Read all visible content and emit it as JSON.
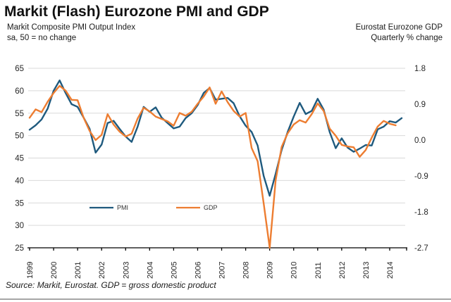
{
  "page": {
    "title": "Markit (Flash) Eurozone PMI and GDP",
    "source_note": "Source: Markit, Eurostat. GDP = gross domestic product"
  },
  "axis_titles": {
    "left_line1": "Markit Composite PMI Output Index",
    "left_line2": "sa, 50 = no change",
    "right_line1": "Eurostat Eurozone GDP",
    "right_line2": "Quarterly % change"
  },
  "colors": {
    "pmi_line": "#1f5a7e",
    "gdp_line": "#ed7d31",
    "gridline": "#d9d9d9",
    "axis": "#000000"
  },
  "chart_data": {
    "type": "line",
    "title": "Markit (Flash) Eurozone PMI and GDP",
    "grid": true,
    "legend_position": "inside-bottom",
    "x_ticks": [
      1999,
      2000,
      2001,
      2002,
      2003,
      2004,
      2005,
      2006,
      2007,
      2008,
      2009,
      2010,
      2011,
      2012,
      2013,
      2014
    ],
    "left_axis": {
      "label": "Markit Composite PMI Output Index, sa, 50 = no change",
      "ylim": [
        25,
        65
      ],
      "ticks": [
        65,
        60,
        55,
        50,
        45,
        40,
        35,
        30,
        25
      ]
    },
    "right_axis": {
      "label": "Eurostat Eurozone GDP, Quarterly % change",
      "ylim": [
        -2.7,
        1.8
      ],
      "tick_labels": [
        "1.8",
        "0.9",
        "0.0",
        "-0.9",
        "-1.8",
        "-2.7"
      ]
    },
    "series": [
      {
        "name": "PMI",
        "axis": "left",
        "color": "#1f5a7e",
        "x_start": 1999.0,
        "x_step": 0.25,
        "values": [
          51.3,
          52.3,
          53.6,
          56.0,
          60.0,
          62.3,
          59.5,
          57.0,
          56.4,
          54.0,
          51.5,
          46.2,
          48.0,
          52.8,
          53.3,
          51.5,
          49.8,
          48.6,
          52.0,
          56.4,
          55.3,
          56.3,
          54.0,
          52.8,
          51.6,
          52.0,
          53.9,
          55.0,
          56.8,
          59.5,
          60.6,
          58.0,
          58.2,
          58.4,
          57.2,
          54.3,
          52.2,
          50.8,
          47.8,
          41.0,
          36.6,
          41.5,
          46.8,
          50.8,
          54.2,
          57.3,
          54.8,
          55.5,
          58.2,
          55.8,
          50.8,
          47.2,
          49.4,
          47.3,
          46.4,
          47.1,
          47.9,
          47.8,
          51.4,
          52.0,
          53.2,
          52.9,
          53.9
        ]
      },
      {
        "name": "GDP",
        "axis": "right",
        "color": "#ed7d31",
        "x_start": 1999.0,
        "x_step": 0.25,
        "values": [
          0.56,
          0.77,
          0.7,
          0.96,
          1.18,
          1.36,
          1.24,
          1.01,
          1.0,
          0.56,
          0.23,
          0.0,
          0.13,
          0.65,
          0.39,
          0.21,
          0.09,
          0.16,
          0.54,
          0.81,
          0.72,
          0.59,
          0.53,
          0.47,
          0.36,
          0.68,
          0.61,
          0.71,
          0.91,
          1.09,
          1.32,
          0.91,
          1.22,
          0.95,
          0.73,
          0.59,
          0.68,
          -0.2,
          -0.53,
          -1.59,
          -2.7,
          -1.0,
          -0.17,
          0.17,
          0.39,
          0.5,
          0.44,
          0.65,
          0.92,
          0.73,
          0.29,
          0.11,
          -0.12,
          -0.16,
          -0.18,
          -0.42,
          -0.25,
          0.06,
          0.34,
          0.48,
          0.41,
          0.37
        ]
      }
    ]
  }
}
